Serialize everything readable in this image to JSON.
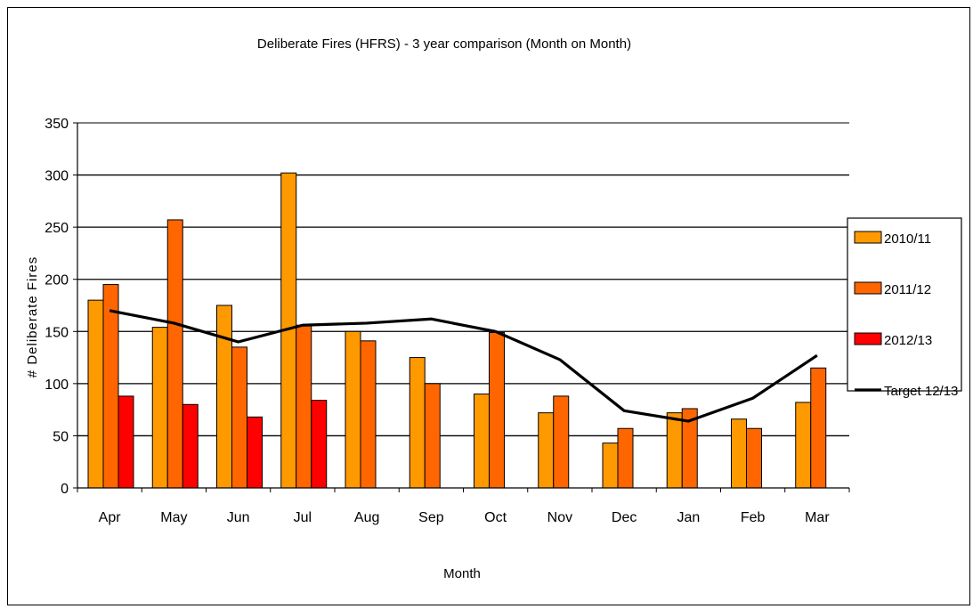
{
  "chart_data": {
    "type": "bar",
    "title": "Deliberate Fires (HFRS) - 3 year comparison (Month on Month)",
    "xlabel": "Month",
    "ylabel": "# Deliberate Fires",
    "ylim": [
      0,
      350
    ],
    "yticks": [
      0,
      50,
      100,
      150,
      200,
      250,
      300,
      350
    ],
    "grid": true,
    "legend_position": "right",
    "categories": [
      "Apr",
      "May",
      "Jun",
      "Jul",
      "Aug",
      "Sep",
      "Oct",
      "Nov",
      "Dec",
      "Jan",
      "Feb",
      "Mar"
    ],
    "series": [
      {
        "name": "2010/11",
        "type": "bar",
        "color": "#FF9900",
        "values": [
          180,
          154,
          175,
          302,
          150,
          125,
          90,
          72,
          43,
          72,
          66,
          82
        ]
      },
      {
        "name": "2011/12",
        "type": "bar",
        "color": "#FF6600",
        "values": [
          195,
          257,
          135,
          156,
          141,
          100,
          149,
          88,
          57,
          76,
          57,
          115
        ]
      },
      {
        "name": "2012/13",
        "type": "bar",
        "color": "#FF0000",
        "values": [
          88,
          80,
          68,
          84,
          null,
          null,
          null,
          null,
          null,
          null,
          null,
          null
        ]
      },
      {
        "name": "Target 12/13",
        "type": "line",
        "color": "#000000",
        "values": [
          170,
          158,
          140,
          156,
          158,
          162,
          150,
          123,
          74,
          64,
          86,
          127
        ]
      }
    ]
  }
}
